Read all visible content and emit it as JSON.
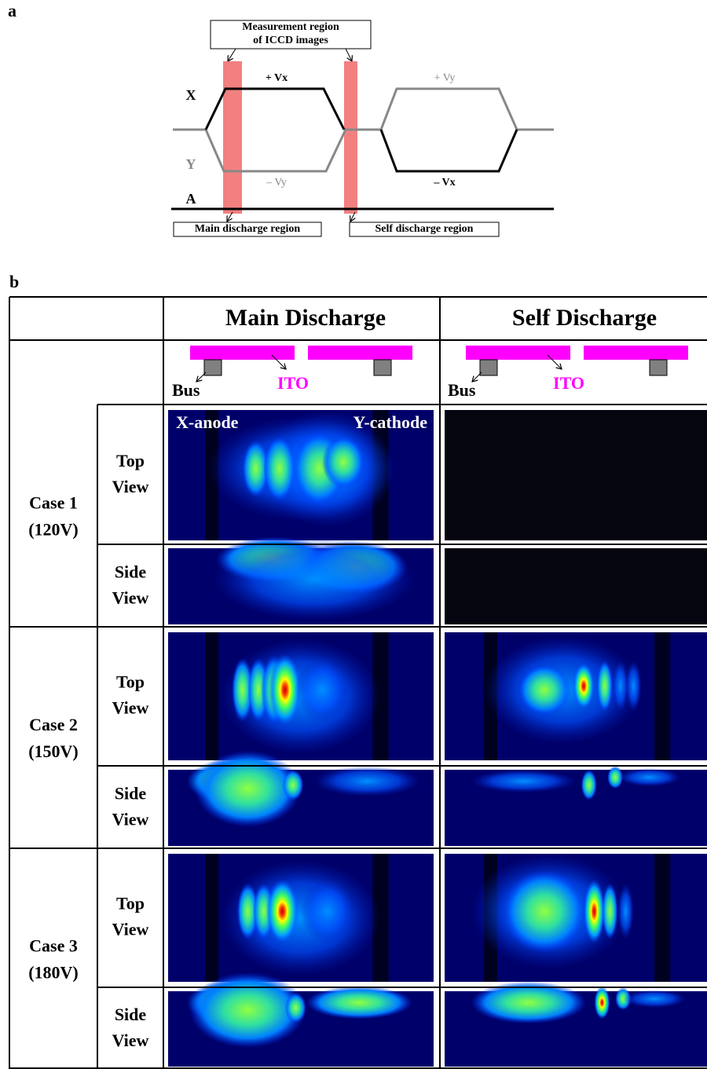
{
  "panel_a": {
    "label": "a",
    "header": [
      "Measurement region",
      "of ICCD images"
    ],
    "signals": {
      "x": "X",
      "y": "Y",
      "a": "A"
    },
    "annotations": {
      "plus_vx": "+ Vx",
      "minus_vy": "– Vy",
      "plus_vy": "+ Vy",
      "minus_vx": "– Vx"
    },
    "regions": [
      "Main discharge region",
      "Self discharge region"
    ]
  },
  "panel_b": {
    "label": "b",
    "columns": [
      "Main Discharge",
      "Self Discharge"
    ],
    "electrodes": {
      "bus": "Bus",
      "ito": "ITO"
    },
    "image_labels": [
      "X-anode",
      "Y-cathode"
    ],
    "cases": [
      {
        "name": "Case 1",
        "voltage": "(120V)"
      },
      {
        "name": "Case 2",
        "voltage": "(150V)"
      },
      {
        "name": "Case 3",
        "voltage": "(180V)"
      }
    ],
    "views": [
      [
        "Top",
        "View"
      ],
      [
        "Side",
        "View"
      ]
    ]
  }
}
